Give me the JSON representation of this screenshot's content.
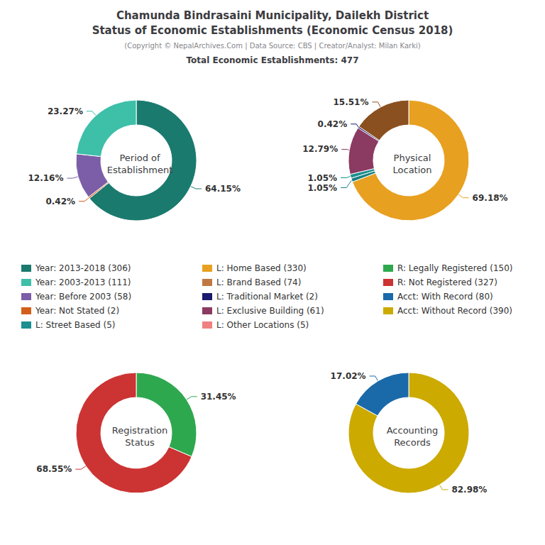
{
  "chart_data": {
    "type": "pie",
    "title": "Chamunda Bindrasaini Municipality, Dailekh District\nStatus of Economic Establishments (Economic Census 2018)",
    "subtitle": "(Copyright © NepalArchives.Com | Data Source: CBS | Creator/Analyst: Milan Karki)",
    "annotations": [
      "Total Economic Establishments: 477"
    ],
    "pies": [
      {
        "title": "Period of\nEstablishment",
        "values": [
          64.15,
          0.42,
          12.16,
          23.27
        ],
        "value_labels": [
          "64.15%",
          "0.42%",
          "12.16%",
          "23.27%"
        ],
        "colors": [
          "#1a7a6e",
          "#d2601a",
          "#7b5ea7",
          "#3dbfa8"
        ]
      },
      {
        "title": "Physical\nLocation",
        "values": [
          69.18,
          1.05,
          1.05,
          12.79,
          0.42,
          15.51
        ],
        "value_labels": [
          "69.18%",
          "1.05%",
          "1.05%",
          "12.79%",
          "0.42%",
          "15.51%"
        ],
        "colors": [
          "#E8A020",
          "#1a8080",
          "#1a9090",
          "#8B3A62",
          "#1a1a6e",
          "#8B5020"
        ]
      },
      {
        "title": "Registration\nStatus",
        "values": [
          31.45,
          68.55
        ],
        "value_labels": [
          "31.45%",
          "68.55%"
        ],
        "colors": [
          "#2ea84e",
          "#cc3333"
        ]
      },
      {
        "title": "Accounting\nRecords",
        "values": [
          82.98,
          17.02
        ],
        "value_labels": [
          "82.98%",
          "17.02%"
        ],
        "colors": [
          "#ccaa00",
          "#1a6aaa"
        ]
      }
    ],
    "legend_entries": [
      {
        "name": "Year: 2013-2018 (306)",
        "color": "#1a7a6e"
      },
      {
        "name": "Year: 2003-2013 (111)",
        "color": "#3dbfa8"
      },
      {
        "name": "Year: Before 2003 (58)",
        "color": "#7b5ea7"
      },
      {
        "name": "Year: Not Stated (2)",
        "color": "#d2601a"
      },
      {
        "name": "L: Street Based (5)",
        "color": "#1a9090"
      },
      {
        "name": "L: Home Based (330)",
        "color": "#E8A020"
      },
      {
        "name": "L: Brand Based (74)",
        "color": "#c07840"
      },
      {
        "name": "L: Traditional Market (2)",
        "color": "#1a1a6e"
      },
      {
        "name": "L: Exclusive Building (61)",
        "color": "#8B3A62"
      },
      {
        "name": "L: Other Locations (5)",
        "color": "#f08080"
      },
      {
        "name": "R: Legally Registered (150)",
        "color": "#2ea84e"
      },
      {
        "name": "R: Not Registered (327)",
        "color": "#cc3333"
      },
      {
        "name": "Acct: With Record (80)",
        "color": "#1a6aaa"
      },
      {
        "name": "Acct: Without Record (390)",
        "color": "#ccaa00"
      }
    ]
  }
}
